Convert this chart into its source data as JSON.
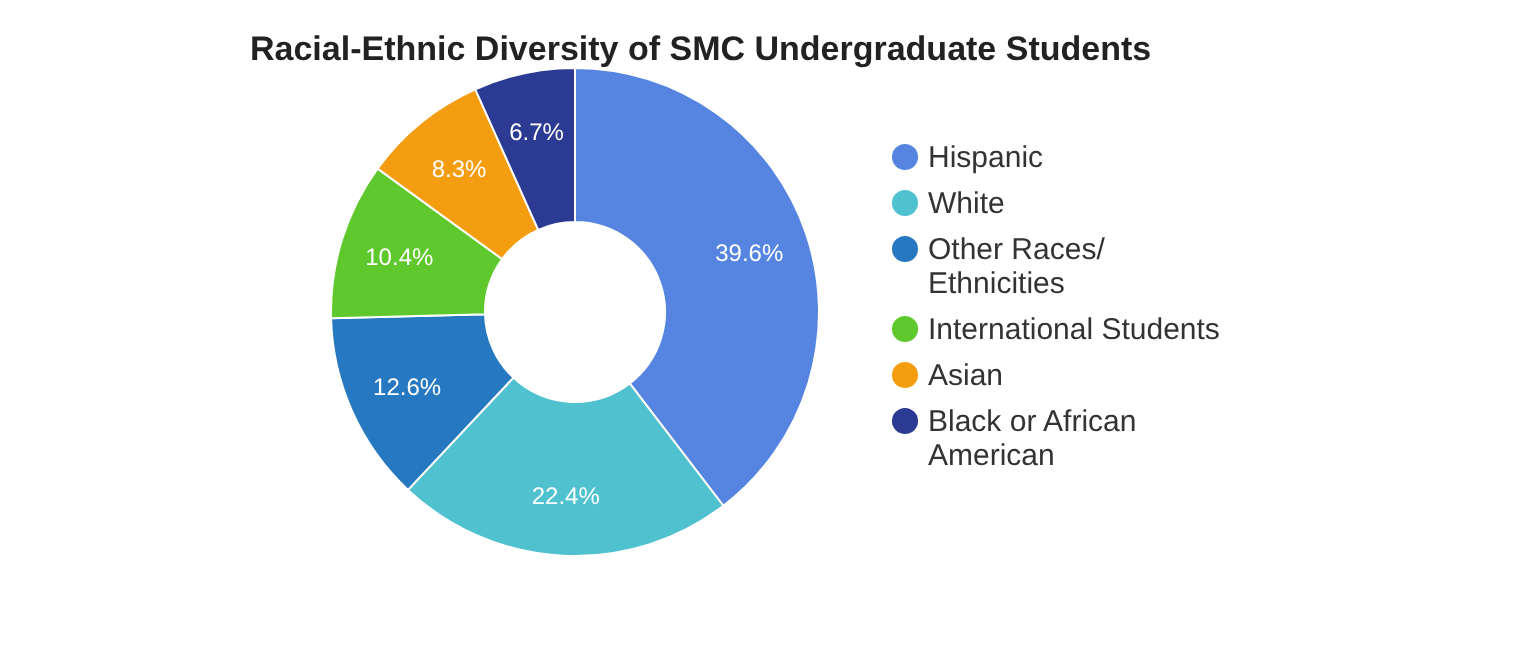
{
  "chart_data": {
    "type": "donut",
    "title": "Racial-Ethnic Diversity of SMC Undergraduate Students",
    "categories": [
      "Hispanic",
      "White",
      "Other Races/ Ethnicities",
      "International Students",
      "Asian",
      "Black or African American"
    ],
    "values": [
      39.6,
      22.4,
      12.6,
      10.4,
      8.3,
      6.7
    ],
    "value_labels": [
      "39.6%",
      "22.4%",
      "12.6%",
      "10.4%",
      "8.3%",
      "6.7%"
    ],
    "colors": [
      "#5585e0",
      "#4fc1cf",
      "#2678c0",
      "#5ec82c",
      "#f59d10",
      "#2b3a93"
    ],
    "legend": "right"
  }
}
